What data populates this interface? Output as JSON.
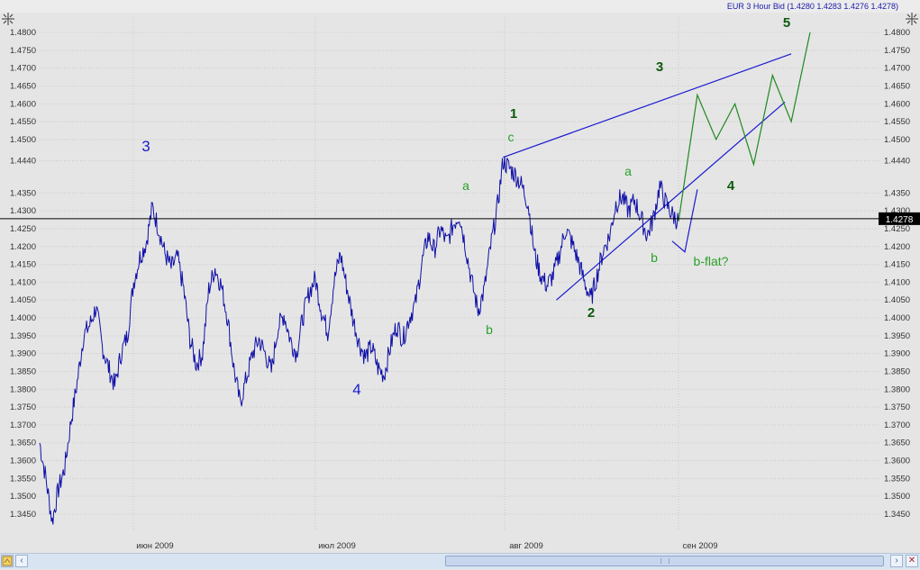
{
  "window": {
    "instrument_title": "EUR 3 Hour Bid (1.4280 1.4283 1.4276 1.4278)"
  },
  "icons": {
    "left": "crosshair-cursor-icon",
    "right": "crosshair-cursor-icon"
  },
  "colors": {
    "background": "#e5e5e5",
    "price_line": "#1010a8",
    "wave_blue": "#1a1ad0",
    "wave_dark_green": "#0b5a0b",
    "wave_light_green": "#2aa12a",
    "current_price_box": "#000000"
  },
  "chart_data": {
    "type": "line",
    "y_axis": {
      "ticks": [
        "1.4800",
        "1.4750",
        "1.4700",
        "1.4650",
        "1.4600",
        "1.4550",
        "1.4500",
        "1.4440",
        "1.4350",
        "1.4300",
        "1.4250",
        "1.4200",
        "1.4150",
        "1.4100",
        "1.4050",
        "1.4000",
        "1.3950",
        "1.3900",
        "1.3850",
        "1.3800",
        "1.3750",
        "1.3700",
        "1.3650",
        "1.3600",
        "1.3550",
        "1.3500",
        "1.3450"
      ],
      "range": [
        1.342,
        1.484
      ],
      "grid": true
    },
    "x_axis": {
      "labels": [
        "июн 2009",
        "июл 2009",
        "авг 2009",
        "сен 2009"
      ]
    },
    "current_price": "1.4278",
    "price_series": [
      [
        0,
        1.365
      ],
      [
        2,
        1.355
      ],
      [
        4,
        1.343
      ],
      [
        6,
        1.352
      ],
      [
        8,
        1.358
      ],
      [
        10,
        1.371
      ],
      [
        12,
        1.382
      ],
      [
        14,
        1.395
      ],
      [
        16,
        1.398
      ],
      [
        18,
        1.403
      ],
      [
        20,
        1.392
      ],
      [
        22,
        1.386
      ],
      [
        24,
        1.381
      ],
      [
        26,
        1.39
      ],
      [
        28,
        1.395
      ],
      [
        30,
        1.41
      ],
      [
        32,
        1.417
      ],
      [
        34,
        1.421
      ],
      [
        36,
        1.431
      ],
      [
        38,
        1.425
      ],
      [
        40,
        1.418
      ],
      [
        42,
        1.414
      ],
      [
        44,
        1.417
      ],
      [
        46,
        1.408
      ],
      [
        48,
        1.394
      ],
      [
        50,
        1.387
      ],
      [
        52,
        1.39
      ],
      [
        54,
        1.408
      ],
      [
        56,
        1.414
      ],
      [
        58,
        1.409
      ],
      [
        60,
        1.4
      ],
      [
        62,
        1.386
      ],
      [
        64,
        1.376
      ],
      [
        66,
        1.383
      ],
      [
        68,
        1.39
      ],
      [
        70,
        1.394
      ],
      [
        72,
        1.39
      ],
      [
        74,
        1.385
      ],
      [
        76,
        1.397
      ],
      [
        78,
        1.401
      ],
      [
        80,
        1.394
      ],
      [
        82,
        1.39
      ],
      [
        84,
        1.4
      ],
      [
        86,
        1.407
      ],
      [
        88,
        1.411
      ],
      [
        90,
        1.402
      ],
      [
        92,
        1.396
      ],
      [
        94,
        1.41
      ],
      [
        96,
        1.418
      ],
      [
        98,
        1.409
      ],
      [
        100,
        1.4
      ],
      [
        102,
        1.393
      ],
      [
        104,
        1.389
      ],
      [
        106,
        1.392
      ],
      [
        108,
        1.386
      ],
      [
        110,
        1.384
      ],
      [
        112,
        1.392
      ],
      [
        114,
        1.398
      ],
      [
        116,
        1.394
      ],
      [
        118,
        1.4
      ],
      [
        120,
        1.404
      ],
      [
        122,
        1.415
      ],
      [
        124,
        1.423
      ],
      [
        126,
        1.419
      ],
      [
        128,
        1.425
      ],
      [
        130,
        1.421
      ],
      [
        132,
        1.426
      ],
      [
        134,
        1.429
      ],
      [
        136,
        1.42
      ],
      [
        138,
        1.41
      ],
      [
        140,
        1.402
      ],
      [
        142,
        1.408
      ],
      [
        144,
        1.42
      ],
      [
        146,
        1.43
      ],
      [
        148,
        1.444
      ],
      [
        150,
        1.442
      ],
      [
        152,
        1.44
      ],
      [
        154,
        1.437
      ],
      [
        156,
        1.432
      ],
      [
        158,
        1.418
      ],
      [
        160,
        1.412
      ],
      [
        162,
        1.409
      ],
      [
        164,
        1.412
      ],
      [
        166,
        1.418
      ],
      [
        168,
        1.425
      ],
      [
        170,
        1.421
      ],
      [
        172,
        1.416
      ],
      [
        174,
        1.41
      ],
      [
        176,
        1.405
      ],
      [
        178,
        1.412
      ],
      [
        180,
        1.419
      ],
      [
        182,
        1.423
      ],
      [
        184,
        1.432
      ],
      [
        186,
        1.434
      ],
      [
        188,
        1.43
      ],
      [
        190,
        1.433
      ],
      [
        192,
        1.428
      ],
      [
        194,
        1.423
      ],
      [
        196,
        1.428
      ],
      [
        198,
        1.437
      ],
      [
        200,
        1.432
      ],
      [
        202,
        1.429
      ],
      [
        204,
        1.427
      ]
    ],
    "price_series_units": "index 0-204 over the visible time span",
    "trendlines": [
      {
        "name": "upper-wedge",
        "from": [
          148,
          1.445
        ],
        "to": [
          240,
          1.474
        ]
      },
      {
        "name": "lower-wedge",
        "from": [
          165,
          1.405
        ],
        "to": [
          238,
          1.4605
        ]
      }
    ],
    "projection_green": [
      [
        204,
        1.427
      ],
      [
        210,
        1.4625
      ],
      [
        216,
        1.45
      ],
      [
        222,
        1.46
      ],
      [
        228,
        1.443
      ],
      [
        234,
        1.468
      ],
      [
        240,
        1.455
      ],
      [
        246,
        1.48
      ]
    ],
    "projection_blue": [
      [
        202,
        1.4215
      ],
      [
        206,
        1.4185
      ],
      [
        210,
        1.436
      ]
    ],
    "wave_labels": [
      {
        "text": "3",
        "color": "wave_blue",
        "size": "large"
      },
      {
        "text": "4",
        "color": "wave_blue",
        "size": "large"
      },
      {
        "text": "1",
        "color": "wave_dark_green",
        "size": "medium"
      },
      {
        "text": "2",
        "color": "wave_dark_green",
        "size": "medium"
      },
      {
        "text": "3",
        "color": "wave_dark_green",
        "size": "medium"
      },
      {
        "text": "4",
        "color": "wave_dark_green",
        "size": "medium"
      },
      {
        "text": "5",
        "color": "wave_dark_green",
        "size": "medium"
      },
      {
        "text": "a",
        "color": "wave_light_green",
        "size": "small"
      },
      {
        "text": "b",
        "color": "wave_light_green",
        "size": "small"
      },
      {
        "text": "c",
        "color": "wave_light_green",
        "size": "small"
      },
      {
        "text": "a",
        "color": "wave_light_green",
        "size": "small"
      },
      {
        "text": "b",
        "color": "wave_light_green",
        "size": "small"
      },
      {
        "text": "b-flat?",
        "color": "wave_light_green",
        "size": "small"
      }
    ]
  },
  "scrollbar": {
    "left_arrow": "‹",
    "right_arrow": "›",
    "close": "✕"
  }
}
